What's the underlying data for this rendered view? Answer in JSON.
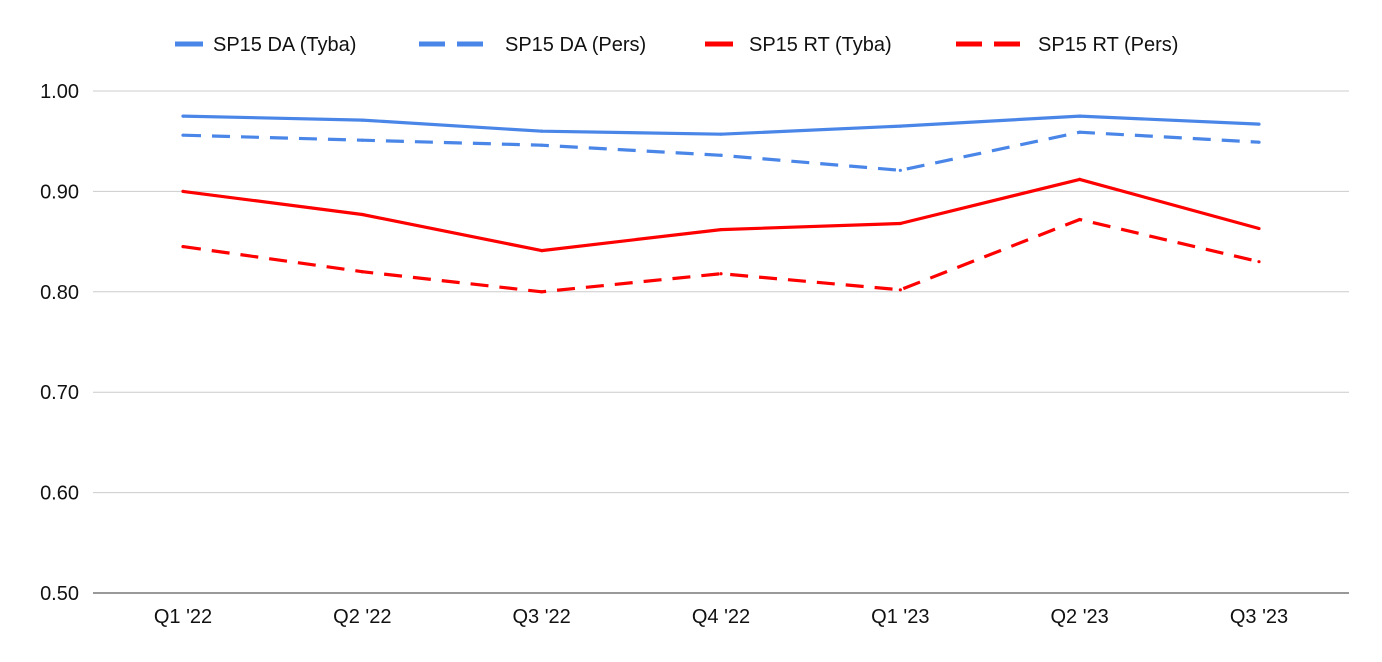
{
  "chart_data": {
    "type": "line",
    "title": "",
    "xlabel": "",
    "ylabel": "",
    "categories": [
      "Q1 '22",
      "Q2 '22",
      "Q3 '22",
      "Q4 '22",
      "Q1 '23",
      "Q2 '23",
      "Q3 '23"
    ],
    "ylim": [
      0.5,
      1.0
    ],
    "yticks": [
      "0.50",
      "0.60",
      "0.70",
      "0.80",
      "0.90",
      "1.00"
    ],
    "grid": true,
    "legend_position": "top",
    "series": [
      {
        "name": "SP15 DA (Tyba)",
        "color": "#4a86e8",
        "dashed": false,
        "values": [
          0.975,
          0.971,
          0.96,
          0.957,
          0.965,
          0.975,
          0.967
        ]
      },
      {
        "name": "SP15 DA (Pers)",
        "color": "#4a86e8",
        "dashed": true,
        "values": [
          0.956,
          0.951,
          0.946,
          0.936,
          0.921,
          0.959,
          0.949
        ]
      },
      {
        "name": "SP15 RT (Tyba)",
        "color": "#ff0000",
        "dashed": false,
        "values": [
          0.9,
          0.877,
          0.841,
          0.862,
          0.868,
          0.912,
          0.863
        ]
      },
      {
        "name": "SP15 RT (Pers)",
        "color": "#ff0000",
        "dashed": true,
        "values": [
          0.845,
          0.82,
          0.8,
          0.818,
          0.802,
          0.872,
          0.83
        ]
      }
    ]
  }
}
